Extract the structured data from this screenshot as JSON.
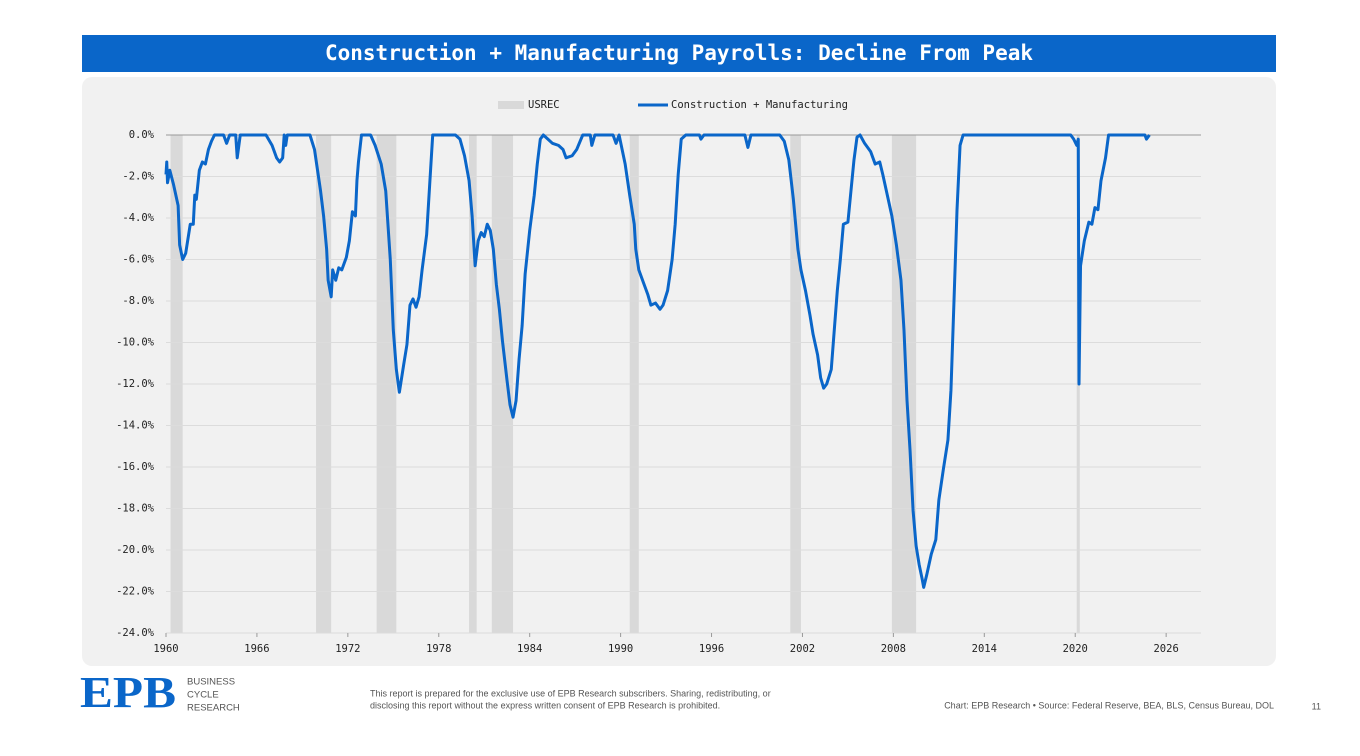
{
  "chart_data": {
    "type": "line",
    "title": "Construction + Manufacturing Payrolls: Decline From Peak",
    "xlim": [
      1960,
      2028.3
    ],
    "xticks": [
      1960,
      1966,
      1972,
      1978,
      1984,
      1990,
      1996,
      2002,
      2008,
      2014,
      2020,
      2026
    ],
    "ylim": [
      -24,
      0
    ],
    "yticks": [
      {
        "value": 0,
        "label": "0.0%"
      },
      {
        "value": -2,
        "label": "-2.0%"
      },
      {
        "value": -4,
        "label": "-4.0%"
      },
      {
        "value": -6,
        "label": "-6.0%"
      },
      {
        "value": -8,
        "label": "-8.0%"
      },
      {
        "value": -10,
        "label": "-10.0%"
      },
      {
        "value": -12,
        "label": "-12.0%"
      },
      {
        "value": -14,
        "label": "-14.0%"
      },
      {
        "value": -16,
        "label": "-16.0%"
      },
      {
        "value": -18,
        "label": "-18.0%"
      },
      {
        "value": -20,
        "label": "-20.0%"
      },
      {
        "value": -22,
        "label": "-22.0%"
      },
      {
        "value": -24,
        "label": "-24.0%"
      }
    ],
    "grid": true,
    "series": [
      {
        "name": "USREC",
        "color": "#d9d9d9",
        "bands": [
          [
            1960.3,
            1961.1
          ],
          [
            1969.9,
            1970.9
          ],
          [
            1973.9,
            1975.2
          ],
          [
            1980.0,
            1980.5
          ],
          [
            1981.5,
            1982.9
          ],
          [
            1990.6,
            1991.2
          ],
          [
            2001.2,
            2001.9
          ],
          [
            2007.9,
            2009.5
          ],
          [
            2020.1,
            2020.3
          ]
        ]
      },
      {
        "name": "Construction + Manufacturing",
        "color": "#0a66c9",
        "x": [
          1960.0,
          1960.05,
          1960.1,
          1960.25,
          1960.5,
          1960.8,
          1960.9,
          1961.1,
          1961.3,
          1961.6,
          1961.8,
          1961.9,
          1962.0,
          1962.2,
          1962.4,
          1962.6,
          1962.8,
          1963.0,
          1963.2,
          1963.8,
          1964.0,
          1964.2,
          1964.6,
          1964.7,
          1964.9,
          1966.6,
          1967.0,
          1967.3,
          1967.5,
          1967.7,
          1967.8,
          1967.9,
          1968.0,
          1969.5,
          1969.8,
          1970.0,
          1970.2,
          1970.4,
          1970.6,
          1970.7,
          1970.9,
          1971.0,
          1971.2,
          1971.4,
          1971.6,
          1971.9,
          1972.1,
          1972.3,
          1972.5,
          1972.6,
          1972.7,
          1972.9,
          1973.5,
          1973.8,
          1974.2,
          1974.5,
          1974.8,
          1975.0,
          1975.2,
          1975.4,
          1975.7,
          1975.9,
          1976.1,
          1976.3,
          1976.5,
          1976.7,
          1976.9,
          1977.2,
          1977.4,
          1977.6,
          1979.1,
          1979.4,
          1979.7,
          1980.0,
          1980.2,
          1980.4,
          1980.6,
          1980.8,
          1981.0,
          1981.2,
          1981.4,
          1981.6,
          1981.8,
          1982.0,
          1982.2,
          1982.5,
          1982.7,
          1982.9,
          1983.1,
          1983.3,
          1983.5,
          1983.7,
          1984.0,
          1984.3,
          1984.5,
          1984.7,
          1984.9,
          1985.2,
          1985.5,
          1985.9,
          1986.2,
          1986.4,
          1986.8,
          1987.1,
          1987.5,
          1988.0,
          1988.1,
          1988.3,
          1989.5,
          1989.7,
          1989.9,
          1990.1,
          1990.3,
          1990.6,
          1990.9,
          1991.0,
          1991.2,
          1991.5,
          1991.8,
          1992.0,
          1992.3,
          1992.6,
          1992.8,
          1993.1,
          1993.4,
          1993.6,
          1993.8,
          1994.0,
          1994.3,
          1995.2,
          1995.3,
          1995.5,
          1998.2,
          1998.4,
          1998.6,
          2000.5,
          2000.8,
          2001.1,
          2001.4,
          2001.7,
          2001.9,
          2002.2,
          2002.5,
          2002.7,
          2003.0,
          2003.2,
          2003.4,
          2003.6,
          2003.9,
          2004.1,
          2004.3,
          2004.5,
          2004.7,
          2005.0,
          2005.2,
          2005.4,
          2005.6,
          2005.8,
          2006.1,
          2006.5,
          2006.8,
          2007.1,
          2007.3,
          2007.6,
          2007.9,
          2008.2,
          2008.5,
          2008.7,
          2008.9,
          2009.1,
          2009.3,
          2009.5,
          2009.7,
          2009.9,
          2010.0,
          2010.2,
          2010.5,
          2010.8,
          2011.0,
          2011.3,
          2011.6,
          2011.8,
          2012.0,
          2012.2,
          2012.4,
          2012.6,
          2019.7,
          2019.9,
          2020.1,
          2020.2,
          2020.25,
          2020.35,
          2020.6,
          2020.9,
          2021.1,
          2021.3,
          2021.5,
          2021.7,
          2022.0,
          2022.2,
          2024.6,
          2024.7,
          2024.9
        ],
        "values": [
          -1.9,
          -1.3,
          -2.3,
          -1.7,
          -2.4,
          -3.4,
          -5.3,
          -6.0,
          -5.7,
          -4.3,
          -4.3,
          -2.9,
          -3.1,
          -1.7,
          -1.3,
          -1.4,
          -0.7,
          -0.3,
          0,
          0,
          -0.4,
          0,
          0,
          -1.1,
          0,
          0,
          -0.5,
          -1.1,
          -1.3,
          -1.1,
          0,
          -0.5,
          0,
          0,
          -0.7,
          -1.7,
          -2.7,
          -3.9,
          -5.5,
          -7.0,
          -7.8,
          -6.5,
          -7.0,
          -6.4,
          -6.5,
          -5.9,
          -5.1,
          -3.7,
          -3.9,
          -2.2,
          -1.3,
          0,
          0,
          -0.5,
          -1.4,
          -2.7,
          -6.0,
          -9.4,
          -11.3,
          -12.4,
          -11.0,
          -10.1,
          -8.2,
          -7.9,
          -8.3,
          -7.8,
          -6.5,
          -4.8,
          -2.4,
          0,
          0,
          -0.2,
          -1.0,
          -2.2,
          -3.9,
          -6.3,
          -5.1,
          -4.7,
          -4.9,
          -4.3,
          -4.6,
          -5.5,
          -7.2,
          -8.4,
          -9.9,
          -11.8,
          -13.0,
          -13.6,
          -12.8,
          -10.8,
          -9.2,
          -6.7,
          -4.6,
          -2.9,
          -1.4,
          -0.2,
          0,
          -0.2,
          -0.4,
          -0.5,
          -0.7,
          -1.1,
          -1.0,
          -0.7,
          0,
          0,
          -0.5,
          0,
          0,
          -0.4,
          0,
          -0.7,
          -1.4,
          -2.9,
          -4.3,
          -5.5,
          -6.5,
          -7.1,
          -7.7,
          -8.2,
          -8.1,
          -8.4,
          -8.2,
          -7.5,
          -6.0,
          -4.3,
          -1.9,
          -0.2,
          0,
          0,
          -0.2,
          0,
          0,
          -0.6,
          0,
          0,
          -0.3,
          -1.2,
          -3.1,
          -5.5,
          -6.5,
          -7.5,
          -8.7,
          -9.6,
          -10.6,
          -11.7,
          -12.2,
          -12.0,
          -11.3,
          -9.4,
          -7.5,
          -6.0,
          -4.3,
          -4.2,
          -2.7,
          -1.2,
          -0.1,
          0,
          -0.4,
          -0.8,
          -1.4,
          -1.3,
          -1.9,
          -2.9,
          -3.9,
          -5.3,
          -7.0,
          -9.4,
          -12.8,
          -15.2,
          -18.1,
          -19.8,
          -20.7,
          -21.4,
          -21.8,
          -21.2,
          -20.2,
          -19.5,
          -17.6,
          -16.1,
          -14.7,
          -12.3,
          -8.0,
          -3.6,
          -0.5,
          0,
          0,
          -0.2,
          -0.5,
          -0.2,
          -12.0,
          -6.3,
          -5.1,
          -4.2,
          -4.3,
          -3.5,
          -3.6,
          -2.2,
          -1.1,
          0,
          0,
          -0.2,
          0
        ]
      }
    ]
  },
  "footer": {
    "logo": "EPB",
    "brand": [
      "BUSINESS",
      "CYCLE",
      "RESEARCH"
    ],
    "disclaimer": [
      "This report is prepared for the exclusive use of EPB Research subscribers. Sharing, redistributing, or",
      "disclosing this report without the express written consent of EPB Research is prohibited."
    ],
    "source": "Chart: EPB Research  •  Source: Federal Reserve, BEA, BLS, Census Bureau, DOL",
    "page_number": 11
  }
}
